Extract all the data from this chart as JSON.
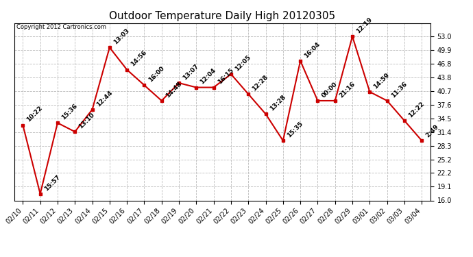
{
  "title": "Outdoor Temperature Daily High 20120305",
  "copyright": "Copyright 2012 Cartronics.com",
  "dates": [
    "02/10",
    "02/11",
    "02/12",
    "02/13",
    "02/14",
    "02/15",
    "02/16",
    "02/17",
    "02/18",
    "02/19",
    "02/20",
    "02/21",
    "02/22",
    "02/23",
    "02/24",
    "02/25",
    "02/26",
    "02/27",
    "02/28",
    "02/29",
    "03/01",
    "03/02",
    "03/03",
    "03/04"
  ],
  "times": [
    "10:22",
    "15:57",
    "15:36",
    "13:10",
    "12:44",
    "13:03",
    "14:56",
    "16:00",
    "14:48",
    "13:07",
    "12:04",
    "16:15",
    "12:05",
    "12:28",
    "13:28",
    "15:35",
    "16:04",
    "00:00",
    "21:16",
    "12:19",
    "14:59",
    "11:36",
    "12:22",
    "2:49"
  ],
  "values": [
    33.0,
    17.5,
    33.5,
    31.5,
    36.5,
    50.5,
    45.5,
    42.0,
    38.5,
    42.5,
    41.5,
    41.5,
    44.5,
    40.0,
    35.5,
    29.5,
    47.5,
    38.5,
    38.5,
    53.0,
    40.5,
    38.5,
    34.0,
    29.5
  ],
  "line_color": "#cc0000",
  "marker_color": "#cc0000",
  "bg_color": "#ffffff",
  "grid_color": "#bbbbbb",
  "ylim_min": 16.0,
  "ylim_max": 56.0,
  "yticks": [
    16.0,
    19.1,
    22.2,
    25.2,
    28.3,
    31.4,
    34.5,
    37.6,
    40.7,
    43.8,
    46.8,
    49.9,
    53.0
  ],
  "title_fontsize": 11,
  "tick_fontsize": 7,
  "annot_fontsize": 6.5,
  "copyright_fontsize": 6
}
